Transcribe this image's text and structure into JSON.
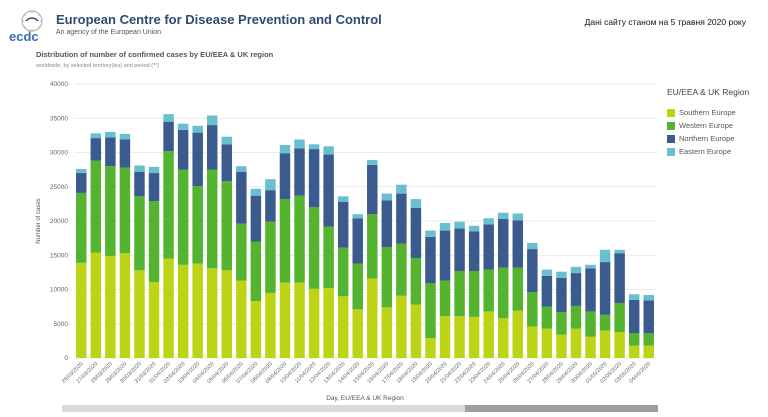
{
  "header": {
    "org_title": "European Centre for Disease Prevention and Control",
    "org_subtitle": "An agency of the European Union",
    "logo_text": "ecdc",
    "notice": "Дані сайту станом на 5 травня 2020 року"
  },
  "chart_data": {
    "type": "bar",
    "stacked": true,
    "title": "Distribution of number of confirmed cases by EU/EEA & UK region",
    "subtitle": "worldwide, by selected territory(ies) and period (**)",
    "xlabel": "Day, EU/EEA & UK Region",
    "ylabel": "Number of cases",
    "ylim": [
      0,
      40000
    ],
    "yticks": [
      0,
      5000,
      10000,
      15000,
      20000,
      25000,
      30000,
      35000,
      40000
    ],
    "legend_title": "EU/EEA & UK Region",
    "legend_position": "right",
    "grid": true,
    "categories": [
      "26/03/2020",
      "27/03/2020",
      "28/03/2020",
      "29/03/2020",
      "30/03/2020",
      "31/03/2020",
      "01/04/2020",
      "02/04/2020",
      "03/04/2020",
      "04/04/2020",
      "05/04/2020",
      "06/04/2020",
      "07/04/2020",
      "08/04/2020",
      "09/04/2020",
      "10/04/2020",
      "11/04/2020",
      "12/04/2020",
      "13/04/2020",
      "14/04/2020",
      "15/04/2020",
      "16/04/2020",
      "17/04/2020",
      "18/04/2020",
      "19/04/2020",
      "20/04/2020",
      "21/04/2020",
      "22/04/2020",
      "23/04/2020",
      "24/04/2020",
      "25/04/2020",
      "26/04/2020",
      "27/04/2020",
      "28/04/2020",
      "29/04/2020",
      "30/04/2020",
      "01/05/2020",
      "02/05/2020",
      "03/05/2020",
      "04/05/2020"
    ],
    "series": [
      {
        "name": "Southern Europe",
        "color": "#bdd416",
        "values": [
          13900,
          15400,
          14900,
          15300,
          12800,
          11100,
          14500,
          13600,
          13800,
          13100,
          12800,
          11300,
          8300,
          9500,
          11000,
          11000,
          10100,
          10200,
          9000,
          7100,
          11600,
          7400,
          9100,
          7800,
          2900,
          6100,
          6100,
          6000,
          6800,
          5800,
          6900,
          4600,
          4300,
          3400,
          4300,
          3100,
          4000,
          3800,
          1800,
          1800
        ]
      },
      {
        "name": "Western Europe",
        "color": "#54b32f",
        "values": [
          10200,
          13400,
          13100,
          12500,
          10800,
          11800,
          15700,
          13900,
          11300,
          14400,
          13000,
          8300,
          8700,
          10400,
          12200,
          12700,
          11900,
          9000,
          7100,
          6700,
          9400,
          8800,
          7600,
          6800,
          8000,
          5200,
          6600,
          6700,
          6100,
          7400,
          6300,
          5000,
          3200,
          3300,
          3300,
          3700,
          2300,
          4200,
          1800,
          1800
        ]
      },
      {
        "name": "Northern Europe",
        "color": "#3b5a8e",
        "values": [
          2900,
          3300,
          4200,
          4100,
          3600,
          4100,
          4300,
          5800,
          7800,
          6500,
          5400,
          7600,
          6700,
          4600,
          6700,
          6900,
          8500,
          10500,
          6700,
          6600,
          7200,
          6800,
          7300,
          7300,
          6800,
          7300,
          6200,
          5800,
          6600,
          7100,
          6900,
          6300,
          4500,
          5000,
          4800,
          6300,
          7700,
          7300,
          4900,
          4800
        ]
      },
      {
        "name": "Eastern Europe",
        "color": "#68c0cf",
        "values": [
          600,
          700,
          800,
          800,
          900,
          900,
          1100,
          900,
          1000,
          1400,
          1100,
          800,
          1000,
          1600,
          1200,
          1300,
          700,
          1200,
          800,
          600,
          700,
          1000,
          1300,
          1300,
          900,
          1100,
          1000,
          800,
          900,
          900,
          1000,
          900,
          900,
          900,
          900,
          500,
          1800,
          500,
          800,
          800
        ]
      }
    ]
  }
}
